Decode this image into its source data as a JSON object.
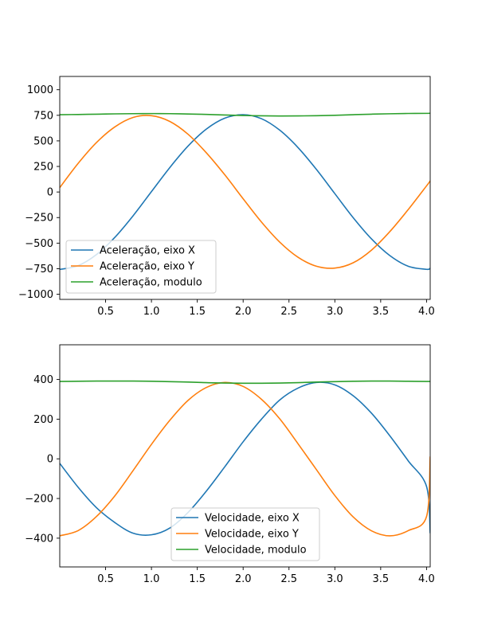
{
  "chart_data": [
    {
      "type": "line",
      "title": "",
      "xlabel": "",
      "ylabel": "",
      "xlim": [
        0.0,
        4.04
      ],
      "ylim": [
        -1050,
        1130
      ],
      "xticks": [
        0.5,
        1.0,
        1.5,
        2.0,
        2.5,
        3.0,
        3.5,
        4.0
      ],
      "xtick_labels": [
        "0.5",
        "1.0",
        "1.5",
        "2.0",
        "2.5",
        "3.0",
        "3.5",
        "4.0"
      ],
      "yticks": [
        -1000,
        -750,
        -500,
        -250,
        0,
        250,
        500,
        750,
        1000
      ],
      "ytick_labels": [
        "−1000",
        "−750",
        "−500",
        "−250",
        "0",
        "250",
        "500",
        "750",
        "1000"
      ],
      "grid": false,
      "legend_position": "lower-left",
      "x": [
        0.0,
        0.2,
        0.4,
        0.6,
        0.8,
        1.0,
        1.2,
        1.4,
        1.6,
        1.8,
        2.0,
        2.2,
        2.4,
        2.6,
        2.8,
        3.0,
        3.2,
        3.4,
        3.6,
        3.8,
        4.0,
        4.04
      ],
      "series": [
        {
          "name": "Aceleração, eixo X",
          "color": "#1f77b4",
          "values": [
            -757,
            -720,
            -612,
            -444,
            -232,
            4,
            239,
            450,
            616,
            722,
            756,
            717,
            604,
            433,
            220,
            -16,
            -251,
            -459,
            -622,
            -726,
            -756,
            -746
          ]
        },
        {
          "name": "Aceleração, eixo Y",
          "color": "#ff7f0e",
          "values": [
            43,
            279,
            483,
            636,
            729,
            746,
            690,
            564,
            382,
            168,
            -66,
            -294,
            -491,
            -639,
            -726,
            -744,
            -692,
            -568,
            -387,
            -172,
            60,
            109
          ]
        },
        {
          "name": "Aceleração, modulo",
          "color": "#2ca02c",
          "values": [
            756,
            758,
            761,
            764,
            766,
            767,
            766,
            763,
            759,
            753,
            748,
            745,
            743,
            744,
            746,
            750,
            756,
            761,
            765,
            768,
            769,
            770
          ]
        }
      ]
    },
    {
      "type": "line",
      "title": "",
      "xlabel": "",
      "ylabel": "",
      "xlim": [
        0.0,
        4.04
      ],
      "ylim": [
        -545,
        575
      ],
      "xticks": [
        0.5,
        1.0,
        1.5,
        2.0,
        2.5,
        3.0,
        3.5,
        4.0
      ],
      "xtick_labels": [
        "0.5",
        "1.0",
        "1.5",
        "2.0",
        "2.5",
        "3.0",
        "3.5",
        "4.0"
      ],
      "yticks": [
        -400,
        -200,
        0,
        200,
        400
      ],
      "ytick_labels": [
        "−400",
        "−200",
        "0",
        "200",
        "400"
      ],
      "grid": false,
      "legend_position": "lower-center",
      "x": [
        0.0,
        0.2,
        0.4,
        0.6,
        0.8,
        1.0,
        1.2,
        1.4,
        1.6,
        1.8,
        2.0,
        2.2,
        2.4,
        2.6,
        2.8,
        3.0,
        3.2,
        3.4,
        3.6,
        3.8,
        4.0,
        4.04
      ],
      "series": [
        {
          "name": "Velocidade, eixo X",
          "color": "#1f77b4",
          "values": [
            -23,
            -143,
            -246,
            -321,
            -375,
            -383,
            -349,
            -270,
            -162,
            -40,
            86,
            200,
            297,
            357,
            385,
            373,
            318,
            230,
            116,
            -10,
            -139,
            -375
          ]
        },
        {
          "name": "Velocidade, eixo Y",
          "color": "#ff7f0e",
          "values": [
            -388,
            -362,
            -291,
            -187,
            -59,
            73,
            194,
            295,
            360,
            385,
            365,
            300,
            201,
            75,
            -55,
            -185,
            -293,
            -363,
            -388,
            -362,
            -291,
            12
          ]
        },
        {
          "name": "Velocidade, modulo",
          "color": "#2ca02c",
          "values": [
            390,
            391,
            392,
            392,
            392,
            391,
            389,
            387,
            384,
            382,
            381,
            381,
            382,
            384,
            387,
            389,
            391,
            392,
            392,
            391,
            390,
            390
          ]
        }
      ]
    }
  ]
}
